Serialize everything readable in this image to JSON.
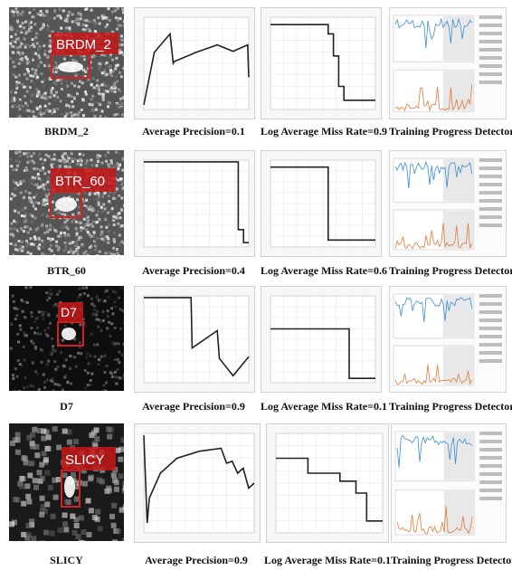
{
  "rows": [
    {
      "target": "BRDM_2",
      "box_label": "BRDM_2",
      "ap_caption": "Average Precision=0.1",
      "mr_caption": "Log Average Miss Rate=0.9",
      "train_caption": "Training Progress Detector"
    },
    {
      "target": "BTR_60",
      "box_label": "BTR_60",
      "ap_caption": "Average Precision=0.4",
      "mr_caption": "Log Average Miss Rate=0.6",
      "train_caption": "Training Progress Detector"
    },
    {
      "target": "D7",
      "box_label": "D7",
      "ap_caption": "Average Precision=0.9",
      "mr_caption": "Log Average Miss Rate=0.1",
      "train_caption": "Training Progress Detector"
    },
    {
      "target": "SLICY",
      "box_label": "SLICY",
      "ap_caption": "Average Precision=0.9",
      "mr_caption": "Log Average Miss Rate=0.1",
      "train_caption": "Training Progress Detector"
    }
  ],
  "colors": {
    "box": "#d42020",
    "curve": "#222222",
    "accuracy": "#3a8fd0",
    "loss": "#e07b39"
  },
  "chart_data": [
    {
      "type": "line",
      "name": "precision-recall",
      "target": "BRDM_2",
      "x": [
        0,
        0.1,
        0.25,
        0.28,
        0.29,
        0.5,
        0.7,
        0.85,
        0.99,
        1.0
      ],
      "y": [
        0.05,
        0.62,
        0.82,
        0.5,
        0.52,
        0.62,
        0.7,
        0.63,
        0.7,
        0.35
      ]
    },
    {
      "type": "line",
      "name": "miss-rate",
      "target": "BRDM_2",
      "x": [
        0,
        0.55,
        0.55,
        0.6,
        0.6,
        0.65,
        0.65,
        0.7,
        0.7,
        1.0
      ],
      "y": [
        0.92,
        0.92,
        0.82,
        0.82,
        0.58,
        0.58,
        0.25,
        0.25,
        0.1,
        0.1
      ]
    },
    {
      "type": "line",
      "name": "precision-recall",
      "target": "BTR_60",
      "x": [
        0,
        0.9,
        0.9,
        0.95,
        0.95,
        1.0
      ],
      "y": [
        0.98,
        0.98,
        0.2,
        0.2,
        0.05,
        0.05
      ]
    },
    {
      "type": "line",
      "name": "miss-rate",
      "target": "BTR_60",
      "x": [
        0,
        0.55,
        0.55,
        1.0
      ],
      "y": [
        0.92,
        0.92,
        0.08,
        0.08
      ]
    },
    {
      "type": "line",
      "name": "precision-recall",
      "target": "D7",
      "x": [
        0,
        0.45,
        0.46,
        0.7,
        0.72,
        0.85,
        1.0
      ],
      "y": [
        0.98,
        0.98,
        0.4,
        0.6,
        0.28,
        0.08,
        0.3
      ]
    },
    {
      "type": "line",
      "name": "miss-rate",
      "target": "D7",
      "x": [
        0,
        0.75,
        0.75,
        1.0
      ],
      "y": [
        0.62,
        0.62,
        0.05,
        0.05
      ]
    },
    {
      "type": "line",
      "name": "precision-recall",
      "target": "SLICY",
      "x": [
        0,
        0.03,
        0.05,
        0.15,
        0.3,
        0.5,
        0.7,
        0.75,
        0.8,
        0.85,
        0.9,
        0.95,
        1.0
      ],
      "y": [
        0.98,
        0.1,
        0.35,
        0.6,
        0.75,
        0.82,
        0.85,
        0.7,
        0.72,
        0.6,
        0.65,
        0.45,
        0.5
      ]
    },
    {
      "type": "line",
      "name": "miss-rate",
      "target": "SLICY",
      "x": [
        0,
        0.3,
        0.3,
        0.6,
        0.6,
        0.75,
        0.75,
        0.85,
        0.85,
        1.0
      ],
      "y": [
        0.75,
        0.75,
        0.6,
        0.6,
        0.52,
        0.52,
        0.4,
        0.4,
        0.12,
        0.12
      ]
    }
  ]
}
